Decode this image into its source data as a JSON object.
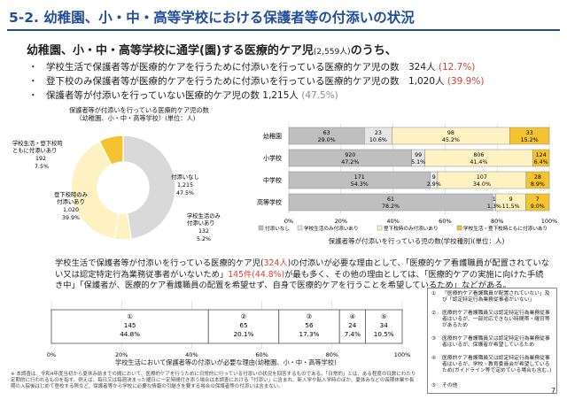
{
  "page": {
    "title": "5-2. 幼稚園、小・中・高等学校における保護者等の付添いの状況",
    "headline": "幼稚園、小・中・高等学校に通学(園)する医療的ケア児",
    "headline_count": "(2,559人)",
    "headline_tail": "のうち、",
    "bullets": [
      {
        "text": "学校生活で保護者等が医療的ケアを行うために付添いを行っている医療的ケア児の数　324人 ",
        "pct": "(12.7%)"
      },
      {
        "text": "登下校のみ保護者等が医療的ケアを行うために付添いを行っている医療的ケア児の数　1,020人 ",
        "pct": "(39.9%)"
      },
      {
        "text": "保護者等が付添いを行っていない医療的ケア児の数 1,215人 ",
        "pct": "(47.5%)"
      }
    ],
    "bullet_mark": "・",
    "page_number": "7"
  },
  "colors": {
    "title": "#1f4e9a",
    "red": "#d9412b",
    "donut": [
      "#f4c430",
      "#fff2c2",
      "#d9d9d9"
    ],
    "bars": [
      "#bfbfbf",
      "#e6e6e6",
      "#fff2c2",
      "#f4c430"
    ]
  },
  "donut": {
    "caption": [
      "保護者等が付添いを行っている医療的ケア児の数",
      "（幼稚園、小・中・高等学校）(単位：人)"
    ],
    "labels": [
      {
        "lines": [
          "学校生活・登下校時",
          "ともに付添いあり",
          "192",
          "7.5%"
        ]
      },
      {
        "lines": [
          "登下校時のみ",
          "付添いあり",
          "1,020",
          "39.9%"
        ]
      },
      {
        "lines": [
          "付添いなし",
          "1,215",
          "47.5%"
        ]
      },
      {
        "lines": [
          "学校生活のみ",
          "付添いあり",
          "132",
          "5.2%"
        ]
      }
    ]
  },
  "stacked": {
    "caption": "保護者等が付添いを行っている児の数(学校種別)(単位：人)",
    "legend": [
      "付添いなし",
      "学校生活のみ付添いあり",
      "登下校時のみ付添いあり",
      "学校生活・登下校時ともに付添いあり"
    ],
    "label_rows": [
      [
        "63",
        "29.0%",
        "23",
        "10.6%",
        "98",
        "45.2%",
        "33",
        "15.2%"
      ],
      [
        "920",
        "47.2%",
        "99",
        "5.1%",
        "806",
        "41.4%",
        "124",
        "6.4%"
      ],
      [
        "171",
        "54.3%",
        "9",
        "2.9%",
        "107",
        "34.0%",
        "28",
        "8.9%"
      ],
      [
        "61",
        "78.2%",
        "1",
        "1.3%",
        "9",
        "11.5%",
        "7",
        "9.0%"
      ]
    ]
  },
  "reasons_chart": {
    "caption": "学校生活において保護者等の付添いが必要な理由(幼稚園、小・中・高等学校)",
    "markers": [
      "①",
      "②",
      "③",
      "④",
      "⑤"
    ],
    "labels": [
      [
        "145",
        "44.8%"
      ],
      [
        "65",
        "20.1%"
      ],
      [
        "56",
        "17.3%"
      ],
      [
        "24",
        "7.4%"
      ],
      [
        "34",
        "10.5%"
      ]
    ]
  },
  "paragraph": {
    "p1": "学校生活で保護者等が付添いを行っている医療的ケア児(",
    "p1_hl": "324人",
    "p2": ")の付添いが必要な理由として、「医療的ケア看護職員が配置されていない又は認定特定行為業務従事者がいないため」",
    "p2_hl": "145件(44.8%)",
    "p3": "が最も多く、その他の理由としては、「医療的ケアの実施に向けた手続き中」「保護者が、医療的ケア看護職員の配置を希望せず、自身で医療的ケアを行うことを希望しているため」などがある。"
  },
  "reason_legend": [
    {
      "num": "①",
      "text": "「医療的ケア看護職員が配置されていない」及び「認定特定行為業務従事者がいない」"
    },
    {
      "num": "②",
      "text": "医療的ケア看護職員又は認定特定行為業務従事者はいるが、一部対応できない時間帯・曜日等があるため"
    },
    {
      "num": "③",
      "text": "医療的ケア看護職員又は認定特定行為業務従事者はいるが、保護者が希望しているため"
    },
    {
      "num": "④",
      "text": "医療的ケア看護職員又は認定特定行為業務従事者はいるが、学校・教育委員会が希望しているため(ガイドライン等で定めている場合も含む。)"
    },
    {
      "num": "⑤",
      "text": "その他"
    }
  ],
  "footnote": "※ 本調査は、令和4年度当初から夏休み前までの間において、医療的ケアを行うために日常的に行っている付添いの状況を回答するものである。「日常的」とは、ある程度の日数にわたり定期的に行われるものを指す。例えば、毎日又は毎週決まった曜日に一定時間付き添う場合は本調査における「付添い」に含まれ、新入学や転入学時のほか、夏休みなどの長期休業や長期の入院後はじめて登校する際など、保護者等から学校に必要な情報の引継ぎを要する場合の保護者等の付添いは含まない。",
  "chart_data": [
    {
      "type": "pie",
      "title": "保護者等が付添いを行っている医療的ケア児の数（幼稚園、小・中・高等学校）(単位：人)",
      "categories": [
        "付添いなし",
        "学校生活のみ付添いあり",
        "登下校時のみ付添いあり",
        "学校生活・登下校時ともに付添いあり"
      ],
      "values": [
        1215,
        132,
        1020,
        192
      ],
      "percent": [
        47.5,
        5.2,
        39.9,
        7.5
      ]
    },
    {
      "type": "bar",
      "orientation": "horizontal",
      "stacked": "percent",
      "title": "保護者等が付添いを行っている児の数(学校種別)(単位：人)",
      "categories": [
        "幼稚園",
        "小学校",
        "中学校",
        "高等学校"
      ],
      "series": [
        {
          "name": "付添いなし",
          "values": [
            63,
            920,
            171,
            61
          ],
          "percent": [
            29.0,
            47.2,
            54.3,
            78.2
          ]
        },
        {
          "name": "学校生活のみ付添いあり",
          "values": [
            23,
            99,
            9,
            1
          ],
          "percent": [
            10.6,
            5.1,
            2.9,
            1.3
          ]
        },
        {
          "name": "登下校時のみ付添いあり",
          "values": [
            98,
            806,
            107,
            9
          ],
          "percent": [
            45.2,
            41.4,
            34.0,
            11.5
          ]
        },
        {
          "name": "学校生活・登下校時ともに付添いあり",
          "values": [
            33,
            124,
            28,
            7
          ],
          "percent": [
            15.2,
            6.4,
            8.9,
            9.0
          ]
        }
      ],
      "xticks": [
        "0%",
        "20%",
        "40%",
        "60%",
        "80%",
        "100%"
      ],
      "xlim": [
        0,
        100
      ]
    },
    {
      "type": "bar",
      "orientation": "horizontal",
      "stacked": "percent",
      "title": "学校生活において保護者等の付添いが必要な理由(幼稚園、小・中・高等学校)",
      "categories": [
        "①",
        "②",
        "③",
        "④",
        "⑤"
      ],
      "values": [
        145,
        65,
        56,
        24,
        34
      ],
      "percent": [
        44.8,
        20.1,
        17.3,
        7.4,
        10.5
      ],
      "xticks": [
        "0%",
        "20%",
        "40%",
        "60%",
        "80%",
        "100%"
      ],
      "xlim": [
        0,
        100
      ]
    }
  ]
}
